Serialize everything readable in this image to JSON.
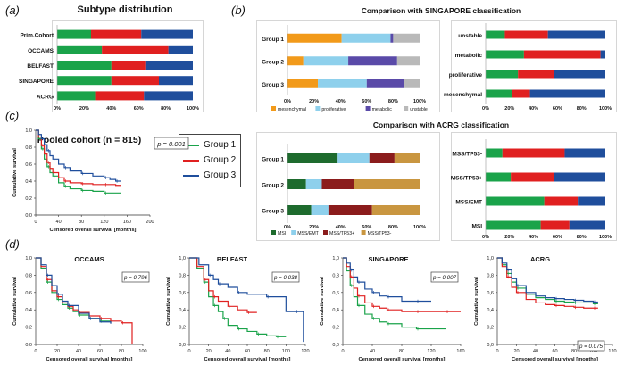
{
  "panel_labels": {
    "a": "(a)",
    "b": "(b)",
    "c": "(c)",
    "d": "(d)"
  },
  "colors": {
    "green": "#1aa34a",
    "red": "#e02020",
    "blue": "#1f4e9c",
    "orange": "#f29a1a",
    "lightblue": "#8ed0ec",
    "purple": "#5a4aa8",
    "gray": "#b9b9b9",
    "darkgreen": "#1e6b2e",
    "darkred": "#8b1c1c",
    "tan": "#c99640"
  },
  "km_legend": {
    "items": [
      {
        "label": "Group 1",
        "color": "#1aa34a"
      },
      {
        "label": "Group 2",
        "color": "#e02020"
      },
      {
        "label": "Group 3",
        "color": "#1f4e9c"
      }
    ]
  },
  "chart_data": [
    {
      "id": "subtype",
      "type": "bar",
      "orientation": "horizontal-stacked",
      "title": "Subtype distribution",
      "categories": [
        "Prim.Cohort",
        "OCCAMS",
        "BELFAST",
        "SINGAPORE",
        "ACRG"
      ],
      "series": [
        {
          "name": "Group 1",
          "color": "#1aa34a",
          "values": [
            25,
            33,
            40,
            40,
            28
          ]
        },
        {
          "name": "Group 2",
          "color": "#e02020",
          "values": [
            37,
            49,
            25,
            35,
            36
          ]
        },
        {
          "name": "Group 3",
          "color": "#1f4e9c",
          "values": [
            38,
            18,
            35,
            25,
            36
          ]
        }
      ],
      "xticks": [
        "0%",
        "20%",
        "40%",
        "60%",
        "80%",
        "100%"
      ],
      "xlim": [
        0,
        100
      ]
    },
    {
      "id": "sing_left",
      "type": "bar",
      "orientation": "horizontal-stacked",
      "title": "Comparison with SINGAPORE classification",
      "categories": [
        "Group 1",
        "Group 2",
        "Group 3"
      ],
      "series": [
        {
          "name": "mesenchymal",
          "color": "#f29a1a",
          "values": [
            41,
            12,
            23
          ]
        },
        {
          "name": "proliferative",
          "color": "#8ed0ec",
          "values": [
            37,
            34,
            37
          ]
        },
        {
          "name": "metabolic",
          "color": "#5a4aa8",
          "values": [
            2,
            37,
            28
          ]
        },
        {
          "name": "unstable",
          "color": "#b9b9b9",
          "values": [
            20,
            17,
            12
          ]
        }
      ],
      "xticks": [
        "0%",
        "20%",
        "40%",
        "60%",
        "80%",
        "100%"
      ],
      "xlim": [
        0,
        100
      ],
      "legend": [
        "mesenchymal",
        "proliferative",
        "metabolic",
        "unstable"
      ]
    },
    {
      "id": "sing_right",
      "type": "bar",
      "orientation": "horizontal-stacked",
      "categories": [
        "unstable",
        "metabolic",
        "proliferative",
        "mesenchymal"
      ],
      "series": [
        {
          "name": "Group 1",
          "color": "#1aa34a",
          "values": [
            16,
            32,
            27,
            22
          ]
        },
        {
          "name": "Group 2",
          "color": "#e02020",
          "values": [
            36,
            64,
            30,
            15
          ]
        },
        {
          "name": "Group 3",
          "color": "#1f4e9c",
          "values": [
            48,
            4,
            43,
            63
          ]
        }
      ],
      "xticks": [
        "0%",
        "20%",
        "40%",
        "60%",
        "80%",
        "100%"
      ],
      "xlim": [
        0,
        100
      ]
    },
    {
      "id": "acrg_left",
      "type": "bar",
      "orientation": "horizontal-stacked",
      "title": "Comparison with ACRG classification",
      "categories": [
        "Group 1",
        "Group 2",
        "Group 3"
      ],
      "series": [
        {
          "name": "MSI",
          "color": "#1e6b2e",
          "values": [
            38,
            14,
            18
          ]
        },
        {
          "name": "MSS/EMT",
          "color": "#8ed0ec",
          "values": [
            24,
            12,
            13
          ]
        },
        {
          "name": "MSS/TP53+",
          "color": "#8b1c1c",
          "values": [
            19,
            24,
            33
          ]
        },
        {
          "name": "MSS/TP53-",
          "color": "#c99640",
          "values": [
            19,
            50,
            36
          ]
        }
      ],
      "xticks": [
        "0%",
        "20%",
        "40%",
        "60%",
        "80%",
        "100%"
      ],
      "xlim": [
        0,
        100
      ],
      "legend": [
        "MSI",
        "MSS/EMT",
        "MSS/TP53+",
        "MSS/TP53-"
      ]
    },
    {
      "id": "acrg_right",
      "type": "bar",
      "orientation": "horizontal-stacked",
      "categories": [
        "MSS/TP53-",
        "MSS/TP53+",
        "MSS/EMT",
        "MSI"
      ],
      "series": [
        {
          "name": "Group 1",
          "color": "#1aa34a",
          "values": [
            14,
            21,
            49,
            46
          ]
        },
        {
          "name": "Group 2",
          "color": "#e02020",
          "values": [
            52,
            36,
            28,
            24
          ]
        },
        {
          "name": "Group 3",
          "color": "#1f4e9c",
          "values": [
            34,
            43,
            23,
            30
          ]
        }
      ],
      "xticks": [
        "0%",
        "20%",
        "40%",
        "60%",
        "80%",
        "100%"
      ],
      "xlim": [
        0,
        100
      ]
    },
    {
      "id": "km_pooled",
      "type": "line",
      "subtype": "kaplan-meier",
      "title": "Pooled cohort (n = 815)",
      "xlabel": "Censored overall survival [months]",
      "ylabel": "Cumulative survival",
      "xlim": [
        0,
        200
      ],
      "ylim": [
        0,
        1
      ],
      "xticks": [
        0,
        40,
        80,
        120,
        160,
        200
      ],
      "yticks": [
        "0,0",
        "0,2",
        "0,4",
        "0,6",
        "0,8",
        "1,0"
      ],
      "pvalue": "p = 0.001",
      "series": [
        {
          "name": "Group 1",
          "color": "#1aa34a",
          "x": [
            0,
            5,
            10,
            15,
            20,
            25,
            30,
            40,
            50,
            60,
            80,
            100,
            120,
            140,
            150
          ],
          "y": [
            1,
            0.9,
            0.78,
            0.66,
            0.57,
            0.5,
            0.46,
            0.38,
            0.34,
            0.31,
            0.29,
            0.28,
            0.26,
            0.26,
            0.26
          ]
        },
        {
          "name": "Group 2",
          "color": "#e02020",
          "x": [
            0,
            5,
            10,
            15,
            20,
            25,
            30,
            40,
            50,
            60,
            80,
            100,
            120,
            140,
            150
          ],
          "y": [
            1,
            0.92,
            0.82,
            0.72,
            0.62,
            0.55,
            0.5,
            0.44,
            0.4,
            0.38,
            0.37,
            0.36,
            0.36,
            0.35,
            0.35
          ]
        },
        {
          "name": "Group 3",
          "color": "#1f4e9c",
          "x": [
            0,
            5,
            10,
            15,
            20,
            25,
            30,
            40,
            50,
            60,
            80,
            100,
            120,
            130,
            140,
            150
          ],
          "y": [
            1,
            0.95,
            0.9,
            0.83,
            0.76,
            0.7,
            0.66,
            0.6,
            0.56,
            0.52,
            0.49,
            0.46,
            0.44,
            0.42,
            0.4,
            0.4
          ]
        }
      ]
    },
    {
      "id": "km_occams",
      "type": "line",
      "subtype": "kaplan-meier",
      "title": "OCCAMS",
      "xlabel": "Censored overall survival [months]",
      "ylabel": "Cumulative survival",
      "xlim": [
        0,
        100
      ],
      "ylim": [
        0,
        1
      ],
      "xticks": [
        0,
        20,
        40,
        60,
        80,
        100
      ],
      "yticks": [
        "0,0",
        "0,2",
        "0,4",
        "0,6",
        "0,8",
        "1,0"
      ],
      "pvalue": "p = 0.796",
      "series": [
        {
          "name": "Group 1",
          "color": "#1aa34a",
          "x": [
            0,
            5,
            10,
            15,
            20,
            25,
            30,
            35,
            40,
            50,
            60,
            70
          ],
          "y": [
            1,
            0.88,
            0.72,
            0.6,
            0.52,
            0.46,
            0.42,
            0.38,
            0.34,
            0.3,
            0.27,
            0.25
          ]
        },
        {
          "name": "Group 2",
          "color": "#e02020",
          "x": [
            0,
            5,
            10,
            15,
            20,
            25,
            30,
            35,
            40,
            50,
            60,
            70,
            80,
            90,
            90
          ],
          "y": [
            1,
            0.9,
            0.75,
            0.62,
            0.55,
            0.48,
            0.44,
            0.4,
            0.37,
            0.33,
            0.3,
            0.27,
            0.25,
            0.25,
            0
          ]
        },
        {
          "name": "Group 3",
          "color": "#1f4e9c",
          "x": [
            0,
            5,
            10,
            15,
            20,
            25,
            30,
            40,
            50,
            60,
            70
          ],
          "y": [
            1,
            0.92,
            0.8,
            0.68,
            0.58,
            0.5,
            0.45,
            0.36,
            0.3,
            0.26,
            0.24
          ]
        }
      ]
    },
    {
      "id": "km_belfast",
      "type": "line",
      "subtype": "kaplan-meier",
      "title": "BELFAST",
      "xlabel": "Censored overall survival [months]",
      "ylabel": "Cumulative survival",
      "xlim": [
        0,
        120
      ],
      "ylim": [
        0,
        1
      ],
      "xticks": [
        0,
        20,
        40,
        60,
        80,
        100,
        120
      ],
      "yticks": [
        "0,0",
        "0,2",
        "0,4",
        "0,6",
        "0,8",
        "1,0"
      ],
      "pvalue": "p = 0.038",
      "series": [
        {
          "name": "Group 1",
          "color": "#1aa34a",
          "x": [
            0,
            8,
            15,
            20,
            25,
            30,
            35,
            40,
            50,
            60,
            70,
            80,
            90,
            100
          ],
          "y": [
            1,
            0.88,
            0.72,
            0.55,
            0.45,
            0.38,
            0.3,
            0.22,
            0.18,
            0.15,
            0.12,
            0.1,
            0.09,
            0.09
          ]
        },
        {
          "name": "Group 2",
          "color": "#e02020",
          "x": [
            0,
            8,
            15,
            20,
            25,
            30,
            40,
            50,
            60,
            70
          ],
          "y": [
            1,
            0.9,
            0.75,
            0.62,
            0.55,
            0.5,
            0.44,
            0.4,
            0.37,
            0.37
          ]
        },
        {
          "name": "Group 3",
          "color": "#1f4e9c",
          "x": [
            0,
            10,
            20,
            25,
            30,
            40,
            50,
            60,
            80,
            100,
            110,
            118,
            118
          ],
          "y": [
            1,
            0.92,
            0.8,
            0.75,
            0.7,
            0.66,
            0.6,
            0.58,
            0.55,
            0.38,
            0.38,
            0.38,
            0.03
          ]
        }
      ]
    },
    {
      "id": "km_singapore",
      "type": "line",
      "subtype": "kaplan-meier",
      "title": "SINGAPORE",
      "xlabel": "Censored overall survival [months]",
      "ylabel": "Cumulative survival",
      "xlim": [
        0,
        160
      ],
      "ylim": [
        0,
        1
      ],
      "xticks": [
        0,
        40,
        80,
        120,
        160
      ],
      "yticks": [
        "0,0",
        "0,2",
        "0,4",
        "0,6",
        "0,8",
        "1,0"
      ],
      "pvalue": "p = 0.007",
      "series": [
        {
          "name": "Group 1",
          "color": "#1aa34a",
          "x": [
            0,
            5,
            10,
            15,
            20,
            30,
            40,
            50,
            60,
            80,
            100,
            120,
            140
          ],
          "y": [
            1,
            0.85,
            0.68,
            0.55,
            0.45,
            0.35,
            0.3,
            0.26,
            0.24,
            0.2,
            0.18,
            0.18,
            0.18
          ]
        },
        {
          "name": "Group 2",
          "color": "#e02020",
          "x": [
            0,
            5,
            10,
            15,
            20,
            30,
            40,
            50,
            60,
            80,
            100,
            120,
            140,
            160
          ],
          "y": [
            1,
            0.9,
            0.78,
            0.65,
            0.56,
            0.48,
            0.44,
            0.42,
            0.4,
            0.38,
            0.38,
            0.38,
            0.38,
            0.38
          ]
        },
        {
          "name": "Group 3",
          "color": "#1f4e9c",
          "x": [
            0,
            5,
            10,
            15,
            20,
            30,
            40,
            50,
            60,
            80,
            100,
            120
          ],
          "y": [
            1,
            0.94,
            0.86,
            0.78,
            0.72,
            0.64,
            0.6,
            0.56,
            0.55,
            0.5,
            0.5,
            0.5
          ]
        }
      ]
    },
    {
      "id": "km_acrg",
      "type": "line",
      "subtype": "kaplan-meier",
      "title": "ACRG",
      "xlabel": "Censored overall survival [months]",
      "ylabel": "Cumulative survival",
      "xlim": [
        0,
        120
      ],
      "ylim": [
        0,
        1
      ],
      "xticks": [
        0,
        20,
        40,
        60,
        80,
        100,
        120
      ],
      "yticks": [
        "0,0",
        "0,2",
        "0,4",
        "0,6",
        "0,8",
        "1,0"
      ],
      "pvalue": "p = 0.075",
      "series": [
        {
          "name": "Group 1",
          "color": "#1aa34a",
          "x": [
            0,
            5,
            10,
            15,
            20,
            30,
            40,
            50,
            60,
            70,
            80,
            90,
            100,
            105
          ],
          "y": [
            1,
            0.92,
            0.82,
            0.72,
            0.65,
            0.58,
            0.54,
            0.52,
            0.5,
            0.49,
            0.48,
            0.48,
            0.47,
            0.47
          ]
        },
        {
          "name": "Group 2",
          "color": "#e02020",
          "x": [
            0,
            5,
            10,
            15,
            20,
            30,
            40,
            50,
            60,
            70,
            80,
            90,
            100,
            105
          ],
          "y": [
            1,
            0.9,
            0.78,
            0.66,
            0.6,
            0.52,
            0.48,
            0.46,
            0.45,
            0.44,
            0.43,
            0.42,
            0.42,
            0.42
          ]
        },
        {
          "name": "Group 3",
          "color": "#1f4e9c",
          "x": [
            0,
            5,
            10,
            15,
            20,
            30,
            40,
            50,
            60,
            70,
            80,
            90,
            100,
            105
          ],
          "y": [
            1,
            0.94,
            0.86,
            0.76,
            0.68,
            0.6,
            0.56,
            0.54,
            0.53,
            0.52,
            0.51,
            0.5,
            0.49,
            0.49
          ]
        }
      ]
    }
  ]
}
